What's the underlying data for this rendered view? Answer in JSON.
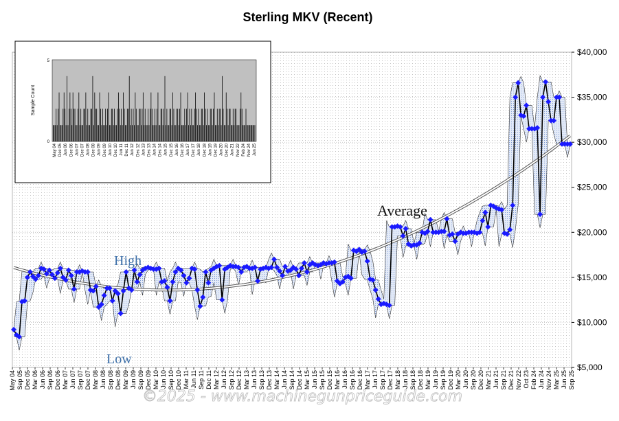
{
  "chart_data": {
    "type": "line",
    "title": "Sterling MKV (Recent)",
    "y_axis": {
      "position": "right",
      "min": 5000,
      "max": 40000,
      "ticks": [
        5000,
        10000,
        15000,
        20000,
        25000,
        30000,
        35000,
        40000
      ],
      "tick_labels": [
        "$5,000",
        "$10,000",
        "$15,000",
        "$20,000",
        "$25,000",
        "$30,000",
        "$35,000",
        "$40,000"
      ]
    },
    "x_axis": {
      "start": "2004-05",
      "end": "2025-09",
      "tick_labels": [
        "May 04",
        "Sep 05",
        "Dec 05",
        "Mar 06",
        "Jun 06",
        "Sep 06",
        "Dec 06",
        "Mar 07",
        "Jun 07",
        "Sep 07",
        "Dec 07",
        "Mar 08",
        "Jun 08",
        "Sep 08",
        "Dec 08",
        "Mar 09",
        "Jun 09",
        "Sep 09",
        "Dec 09",
        "Mar 10",
        "Jun 10",
        "Sep 10",
        "Dec 10",
        "Mar 11",
        "Jun 11",
        "Sep 11",
        "Dec 11",
        "Mar 12",
        "Jun 12",
        "Sep 12",
        "Dec 12",
        "Mar 13",
        "Jun 13",
        "Sep 13",
        "Dec 13",
        "Mar 14",
        "Jun 14",
        "Sep 14",
        "Dec 14",
        "Mar 15",
        "Jun 15",
        "Sep 15",
        "Dec 15",
        "Mar 16",
        "Jun 16",
        "Sep 16",
        "Dec 16",
        "Mar 17",
        "Jun 17",
        "Sep 17",
        "Dec 17",
        "Mar 18",
        "Jun 18",
        "Sep 18",
        "Dec 18",
        "Mar 19",
        "Jun 19",
        "Sep 19",
        "Dec 19",
        "Mar 20",
        "Jun 20",
        "Sep 20",
        "Dec 20",
        "Mar 21",
        "Jun 21",
        "Sep 21",
        "Dec 21",
        "Nov 22",
        "Oct 23",
        "Feb 24",
        "Jun 24",
        "Nov 24",
        "Mar 25",
        "Jun 25",
        "Sep 25"
      ]
    },
    "grid": true,
    "annotations": [
      "High",
      "Low",
      "Average"
    ],
    "watermark": "©2025 - www.machinegunpriceguide.com",
    "colors": {
      "price_line": "#000000",
      "price_marker": "#1a1aff",
      "high_low_line": "#333333",
      "range_fill": "#c8d6f0",
      "trend_line": "#555555",
      "grid_dot": "#bfbfbf",
      "watermark": "#b9b9b9"
    },
    "series": [
      {
        "values": [
          9200,
          8600,
          8400,
          12300,
          12400,
          15000,
          15600,
          15100,
          14800,
          15200,
          16000,
          15900,
          15400,
          15800,
          15300,
          14900,
          15500,
          16000,
          15000,
          14700,
          15800,
          15200,
          13700,
          15600,
          15600,
          15700,
          15600,
          15600,
          13600,
          13500,
          14000,
          11700,
          12000,
          13000,
          13800,
          13800,
          12400,
          13500,
          13200,
          11000,
          13500,
          15600,
          13800,
          13600,
          15800,
          14500,
          15300,
          15800,
          16000,
          16100,
          16000,
          15900,
          15900,
          16000,
          14500,
          14600,
          13900,
          12400,
          14500,
          15600,
          16000,
          15800,
          15200,
          14400,
          14900,
          16000,
          15900,
          13600,
          11800,
          12800,
          15600,
          14400,
          15800,
          16000,
          16200,
          16300,
          12500,
          15900,
          16100,
          16300,
          16200,
          16200,
          16100,
          15600,
          16100,
          16200,
          16000,
          16000,
          16100,
          14600,
          15900,
          16000,
          16100,
          16000,
          16100,
          17000,
          16100,
          15700,
          15200,
          16200,
          15700,
          15800,
          16100,
          15900,
          15200,
          16000,
          16600,
          15600,
          16400,
          16600,
          16400,
          16300,
          16400,
          16600,
          16500,
          16600,
          16600,
          16700,
          14600,
          14300,
          14500,
          15000,
          15100,
          14900,
          18000,
          17900,
          18100,
          17800,
          17900,
          16800,
          14800,
          14700,
          13600,
          12600,
          12000,
          12100,
          12000,
          11900,
          20600,
          20600,
          20700,
          20600,
          19600,
          20400,
          18700,
          18500,
          18600,
          18600,
          18800,
          20000,
          19900,
          20100,
          21400,
          20000,
          20000,
          20000,
          20100,
          20100,
          21500,
          19700,
          19800,
          19000,
          19800,
          20000,
          19900,
          19900,
          20000,
          20000,
          20000,
          19900,
          20000,
          21300,
          22200,
          20600,
          23000,
          22900,
          22700,
          22600,
          22500,
          19900,
          19800,
          20300,
          23000,
          35000,
          36600,
          33000,
          32900,
          34100,
          31500,
          31500,
          31500,
          31600,
          22000,
          35000,
          36700,
          34500,
          32400,
          32400,
          35000,
          35000,
          29800,
          29800,
          29800,
          29800
        ]
      }
    ]
  },
  "inset": {
    "ylabel": "Sample Count",
    "y_ticks": [
      "0",
      "5"
    ],
    "x_tick_labels": [
      "May 04",
      "Dec 05",
      "Jun 06",
      "Dec 06",
      "Jun 07",
      "Dec 07",
      "Jun 08",
      "Dec 08",
      "Jun 09",
      "Dec 09",
      "Jun 10",
      "Dec 10",
      "Jun 11",
      "Dec 11",
      "Jun 12",
      "Dec 12",
      "Jun 13",
      "Dec 13",
      "Jun 14",
      "Dec 14",
      "Jun 15",
      "Dec 15",
      "Jun 16",
      "Dec 16",
      "Jun 17",
      "Dec 17",
      "Jun 18",
      "Dec 18",
      "Jun 19",
      "Dec 19",
      "Jun 20",
      "Dec 20",
      "Jun 21",
      "Nov 22",
      "Feb 24",
      "Nov 24",
      "Jun 25"
    ],
    "counts": [
      1,
      1,
      1,
      2,
      1,
      2,
      3,
      1,
      1,
      1,
      2,
      3,
      2,
      1,
      4,
      1,
      2,
      3,
      2,
      1,
      3,
      2,
      2,
      1,
      1,
      2,
      3,
      1,
      2,
      1,
      1,
      2,
      2,
      3,
      1,
      2,
      1,
      1,
      2,
      2,
      4,
      1,
      3,
      2,
      2,
      1,
      1,
      3,
      2,
      1,
      2,
      1,
      1,
      2,
      1,
      2,
      3,
      1,
      1,
      2,
      2,
      1,
      2,
      1,
      1,
      2,
      3,
      2,
      1,
      2,
      1,
      3,
      2,
      1,
      1,
      2,
      2,
      4,
      1,
      2,
      1,
      2,
      1,
      3,
      2,
      1,
      1,
      2,
      2,
      1,
      2,
      3,
      1,
      2,
      1,
      1,
      2,
      1,
      2,
      3,
      2,
      1,
      1,
      2,
      1,
      2,
      3,
      1,
      1,
      2,
      2,
      1,
      2,
      4,
      1,
      2,
      1,
      1,
      2,
      2,
      1,
      3,
      2,
      1,
      1,
      2,
      2,
      1,
      2,
      3,
      1,
      1,
      1,
      2,
      1,
      2,
      3,
      1,
      2,
      1,
      2,
      1,
      1,
      2,
      3,
      2,
      1,
      2,
      1,
      1,
      2,
      2,
      1,
      3,
      2,
      1,
      2,
      1,
      1,
      2,
      2,
      1,
      2,
      3,
      1,
      1,
      2,
      1,
      2,
      2,
      1,
      4,
      2,
      1,
      1,
      3,
      2,
      1,
      2,
      2,
      1,
      1,
      2,
      1,
      2,
      2,
      1,
      1,
      1,
      2,
      3,
      2,
      1,
      1,
      1,
      2,
      1,
      1,
      1,
      1,
      1,
      1,
      1,
      1,
      1
    ]
  }
}
